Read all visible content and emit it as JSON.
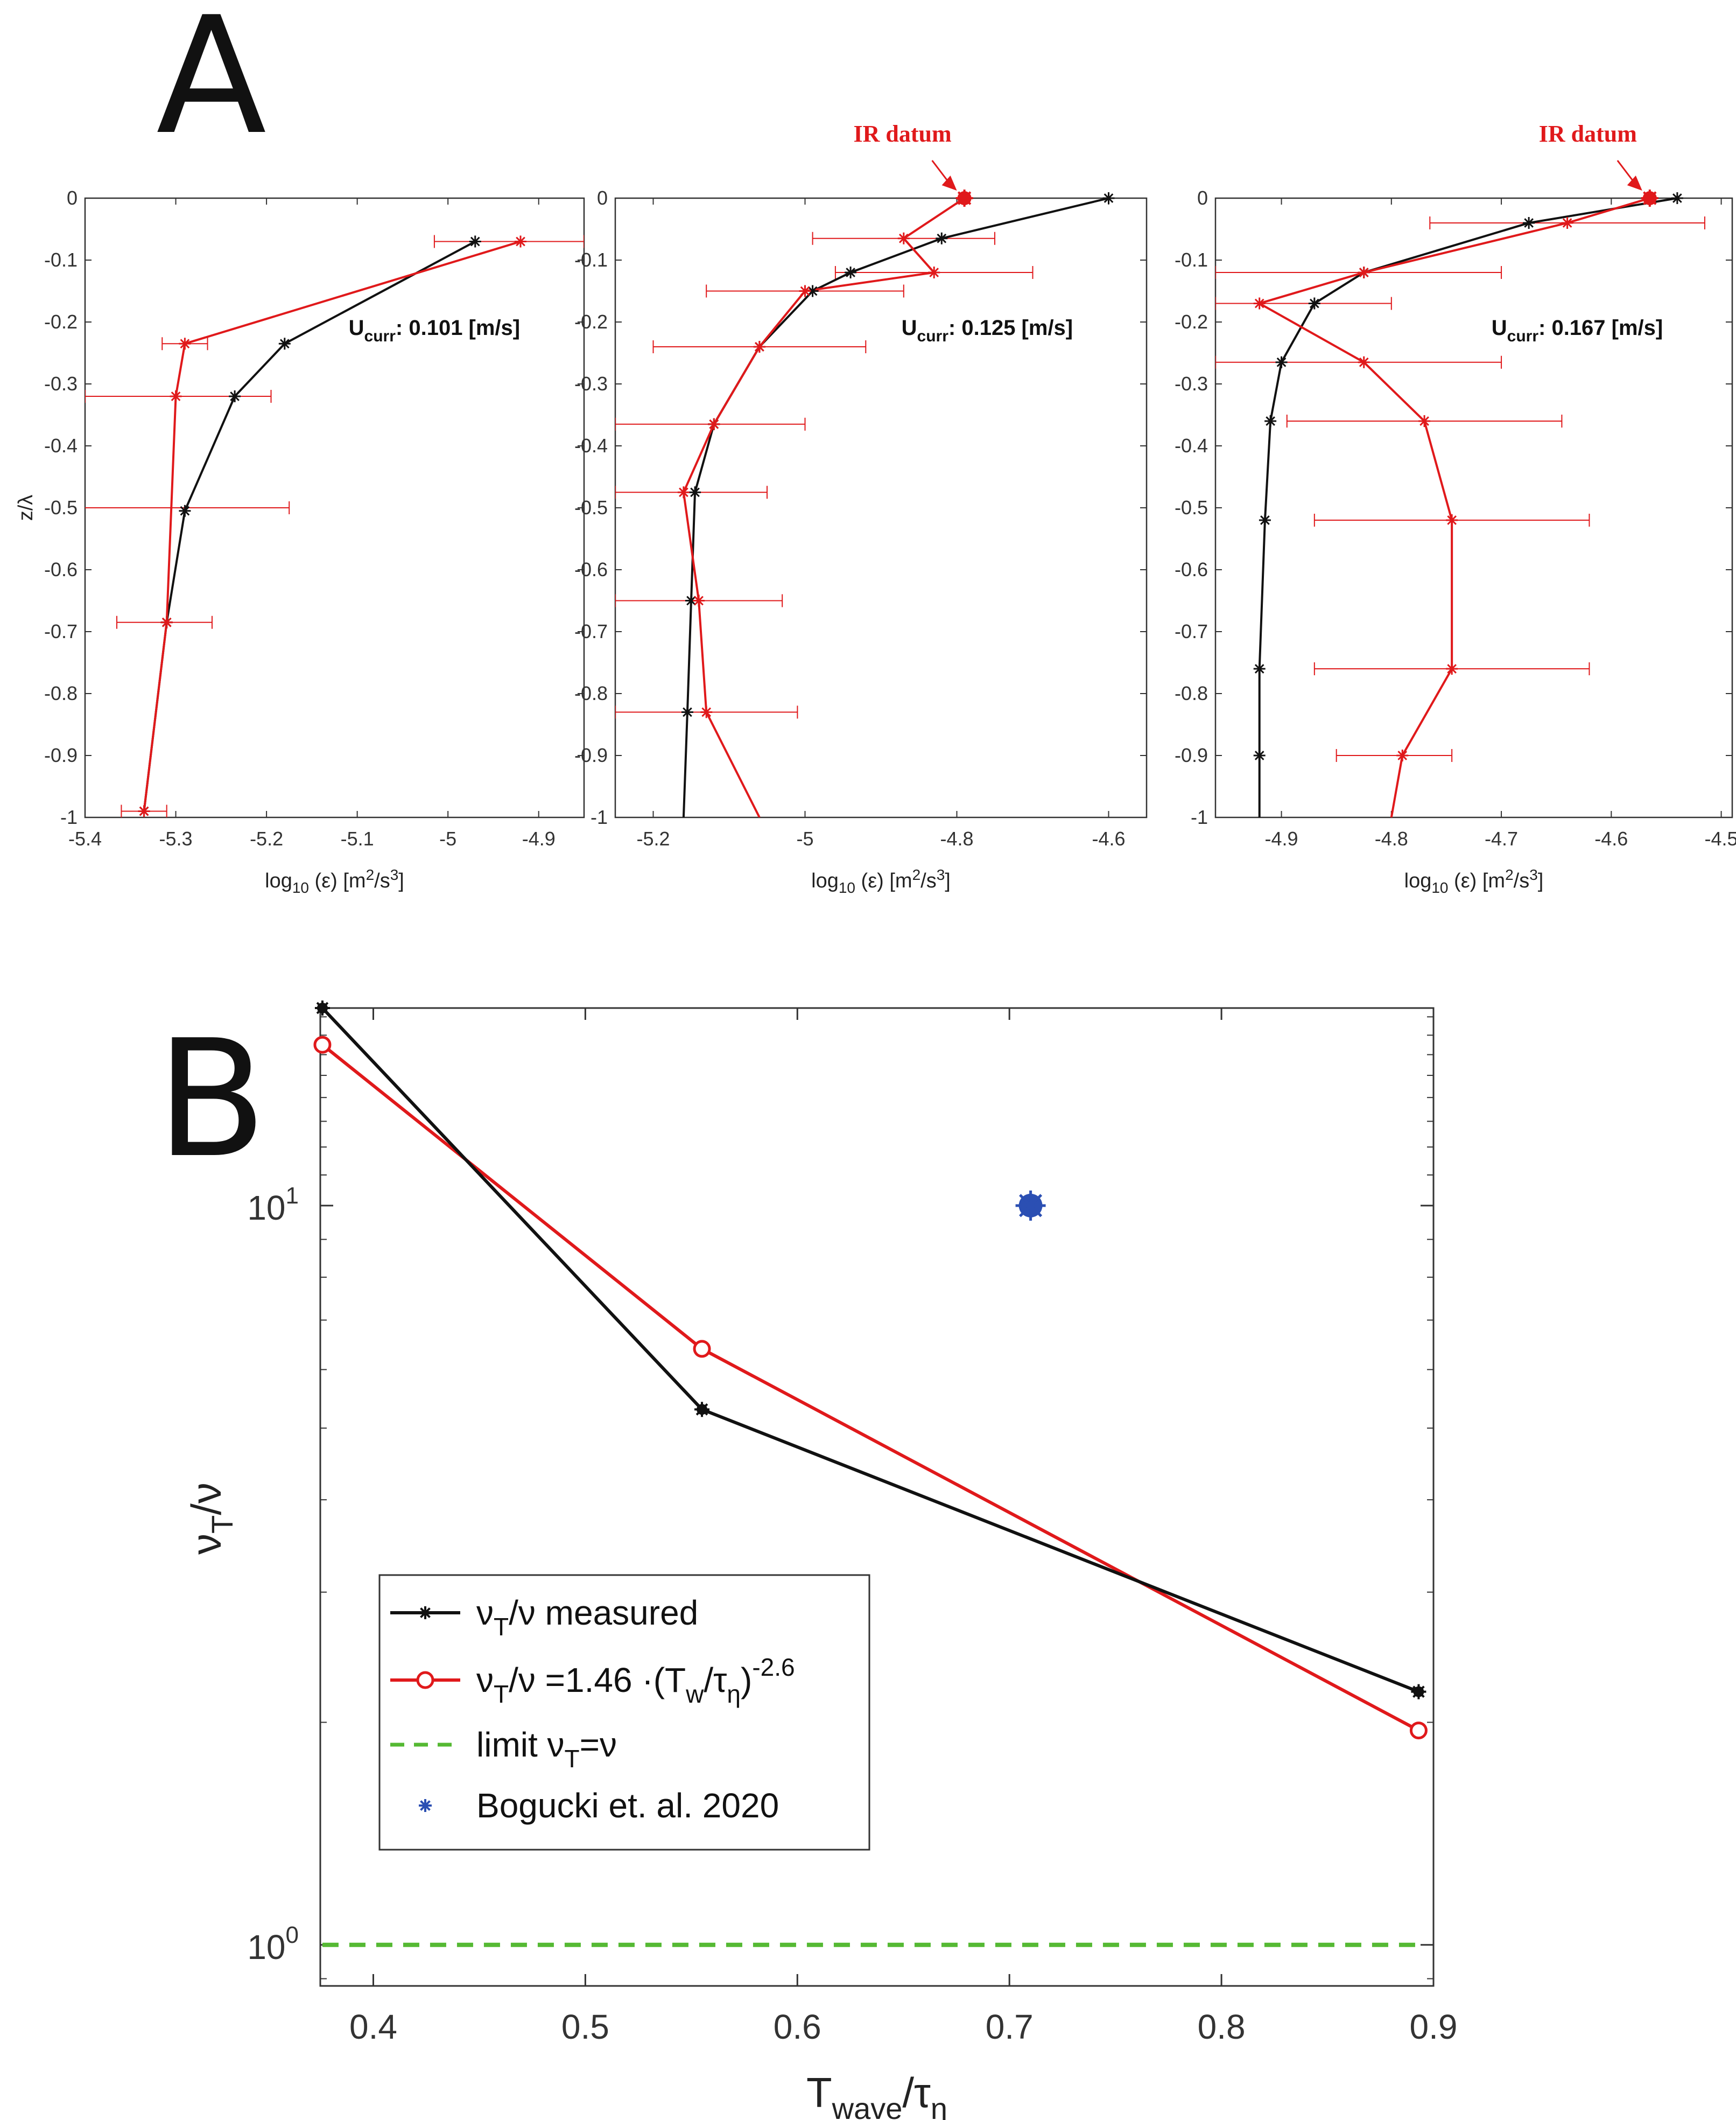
{
  "panel_labels": [
    "A",
    "B"
  ],
  "colors": {
    "model": "#111111",
    "measured": "#e0191b",
    "limit": "#55b933",
    "bogucki": "#2b4fb3",
    "axis": "#333333"
  },
  "chart_data": [
    {
      "type": "line",
      "panel": "A",
      "subplot": 1,
      "xlabel": "log",
      "xlabel_sub": "10",
      "xlabel_rest": " (ε) [m",
      "xlabel_sup": "2",
      "xlabel_tail": "/s",
      "xlabel_sup2": "3",
      "xlabel_end": "]",
      "ylabel": "z/λ",
      "xlim": [
        -5.4,
        -4.85
      ],
      "ylim": [
        -1,
        0
      ],
      "xticks": [
        -5.4,
        -5.3,
        -5.2,
        -5.1,
        -5,
        -4.9
      ],
      "xtick_labels": [
        "-5.4",
        "-5.3",
        "-5.2",
        "-5.1",
        "-5",
        "-4.9"
      ],
      "yticks": [
        0,
        -0.1,
        -0.2,
        -0.3,
        -0.4,
        -0.5,
        -0.6,
        -0.7,
        -0.8,
        -0.9,
        -1
      ],
      "ytick_labels": [
        "0",
        "-0.1",
        "-0.2",
        "-0.3",
        "-0.4",
        "-0.5",
        "-0.6",
        "-0.7",
        "-0.8",
        "-0.9",
        "-1"
      ],
      "annotation": {
        "u": "U",
        "sub": "curr",
        "rest": ": 0.101 [m/s]"
      },
      "series": [
        {
          "name": "model",
          "x": [
            -4.97,
            -5.18,
            -5.235,
            -5.29,
            -5.31,
            -5.335
          ],
          "y": [
            -0.07,
            -0.235,
            -0.32,
            -0.505,
            -0.685,
            -0.99
          ]
        },
        {
          "name": "measured",
          "x": [
            -4.92,
            -5.29,
            -5.3,
            -5.31,
            -5.335
          ],
          "y": [
            -0.07,
            -0.235,
            -0.32,
            -0.685,
            -0.99
          ],
          "xerr_low": [
            -5.015,
            -5.315,
            -5.4,
            -5.365,
            -5.36
          ],
          "xerr_high": [
            -4.85,
            -5.265,
            -5.195,
            -5.26,
            -5.31
          ],
          "extra_errorbars": [
            {
              "y": -0.5,
              "low": -5.4,
              "high": -5.175
            }
          ]
        }
      ]
    },
    {
      "type": "line",
      "panel": "A",
      "subplot": 2,
      "xlabel": "log",
      "xlabel_sub": "10",
      "xlabel_rest": " (ε) [m",
      "xlabel_sup": "2",
      "xlabel_tail": "/s",
      "xlabel_sup2": "3",
      "xlabel_end": "]",
      "xlim": [
        -5.25,
        -4.55
      ],
      "ylim": [
        -1,
        0
      ],
      "xticks": [
        -5.2,
        -5,
        -4.8,
        -4.6
      ],
      "xtick_labels": [
        "-5.2",
        "-5",
        "-4.8",
        "-4.6"
      ],
      "yticks": [
        0,
        -0.1,
        -0.2,
        -0.3,
        -0.4,
        -0.5,
        -0.6,
        -0.7,
        -0.8,
        -0.9,
        -1
      ],
      "ytick_labels": [
        "0",
        "-0.1",
        "-0.2",
        "-0.3",
        "-0.4",
        "-0.5",
        "-0.6",
        "-0.7",
        "-0.8",
        "-0.9",
        "-1"
      ],
      "annotation": {
        "u": "U",
        "sub": "curr",
        "rest": ": 0.125 [m/s]"
      },
      "ir_label": "IR datum",
      "ir_point": {
        "x": -4.79,
        "y": 0
      },
      "series": [
        {
          "name": "model",
          "x": [
            -4.6,
            -4.82,
            -4.94,
            -4.99,
            -5.06,
            -5.12,
            -5.145,
            -5.15,
            -5.155,
            -5.16
          ],
          "y": [
            0,
            -0.065,
            -0.12,
            -0.15,
            -0.24,
            -0.365,
            -0.475,
            -0.65,
            -0.83,
            -1
          ]
        },
        {
          "name": "measured",
          "x": [
            -4.79,
            -4.87,
            -4.83,
            -5.0,
            -5.06,
            -5.12,
            -5.16,
            -5.14,
            -5.13,
            -5.06
          ],
          "y": [
            0,
            -0.065,
            -0.12,
            -0.15,
            -0.24,
            -0.365,
            -0.475,
            -0.65,
            -0.83,
            -1
          ],
          "xerr_low": [
            null,
            -4.99,
            -4.96,
            -5.13,
            -5.2,
            -5.25,
            -5.25,
            -5.25,
            -5.25,
            null
          ],
          "xerr_high": [
            null,
            -4.75,
            -4.7,
            -4.87,
            -4.92,
            -5.0,
            -5.05,
            -5.03,
            -5.01,
            null
          ]
        }
      ]
    },
    {
      "type": "line",
      "panel": "A",
      "subplot": 3,
      "xlabel": "log",
      "xlabel_sub": "10",
      "xlabel_rest": " (ε) [m",
      "xlabel_sup": "2",
      "xlabel_tail": "/s",
      "xlabel_sup2": "3",
      "xlabel_end": "]",
      "xlim": [
        -4.96,
        -4.49
      ],
      "ylim": [
        -1,
        0
      ],
      "xticks": [
        -4.9,
        -4.8,
        -4.7,
        -4.6,
        -4.5
      ],
      "xtick_labels": [
        "-4.9",
        "-4.8",
        "-4.7",
        "-4.6",
        "-4.5"
      ],
      "yticks": [
        0,
        -0.1,
        -0.2,
        -0.3,
        -0.4,
        -0.5,
        -0.6,
        -0.7,
        -0.8,
        -0.9,
        -1
      ],
      "ytick_labels": [
        "0",
        "-0.1",
        "-0.2",
        "-0.3",
        "-0.4",
        "-0.5",
        "-0.6",
        "-0.7",
        "-0.8",
        "-0.9",
        "-1"
      ],
      "annotation": {
        "u": "U",
        "sub": "curr",
        "rest": ": 0.167 [m/s]"
      },
      "ir_label": "IR datum",
      "ir_point": {
        "x": -4.565,
        "y": 0
      },
      "series": [
        {
          "name": "model",
          "x": [
            -4.54,
            -4.675,
            -4.825,
            -4.87,
            -4.9,
            -4.91,
            -4.915,
            -4.92,
            -4.92,
            -4.92
          ],
          "y": [
            0,
            -0.04,
            -0.12,
            -0.17,
            -0.265,
            -0.36,
            -0.52,
            -0.76,
            -0.9,
            -1
          ]
        },
        {
          "name": "measured",
          "x": [
            -4.565,
            -4.64,
            -4.825,
            -4.92,
            -4.825,
            -4.77,
            -4.745,
            -4.745,
            -4.79,
            -4.8
          ],
          "y": [
            0,
            -0.04,
            -0.12,
            -0.17,
            -0.265,
            -0.36,
            -0.52,
            -0.76,
            -0.9,
            -1
          ],
          "xerr_low": [
            null,
            -4.765,
            -4.96,
            -4.96,
            -4.96,
            -4.895,
            -4.87,
            -4.87,
            -4.85,
            null
          ],
          "xerr_high": [
            null,
            -4.515,
            -4.7,
            -4.8,
            -4.7,
            -4.645,
            -4.62,
            -4.62,
            -4.745,
            null
          ]
        }
      ]
    },
    {
      "type": "line",
      "panel": "B",
      "yscale": "log",
      "xlim": [
        0.375,
        0.9
      ],
      "ylim": [
        0.88,
        18.5
      ],
      "xticks": [
        0.4,
        0.5,
        0.6,
        0.7,
        0.8,
        0.9
      ],
      "xtick_labels": [
        "0.4",
        "0.5",
        "0.6",
        "0.7",
        "0.8",
        "0.9"
      ],
      "xlabel": {
        "base": "T",
        "sub": "wave",
        "rest": "/τ",
        "sub2": "η"
      },
      "ylabel": {
        "base": "ν",
        "sub": "T",
        "rest": "/ν"
      },
      "yticks": [
        1,
        10
      ],
      "ytick_labels": [
        {
          "base": "10",
          "exp": "0"
        },
        {
          "base": "10",
          "exp": "1"
        }
      ],
      "series": [
        {
          "name": "ν_T/ν measured",
          "x": [
            0.376,
            0.555,
            0.893
          ],
          "y": [
            18.5,
            5.3,
            2.2
          ]
        },
        {
          "name": "ν_T/ν = 1.46·(T_w/τ_η)^-2.6",
          "x": [
            0.376,
            0.555,
            0.893
          ],
          "y": [
            16.5,
            6.4,
            1.95
          ]
        },
        {
          "name": "limit ν_T=ν",
          "x": [
            0.376,
            0.893
          ],
          "y": [
            1,
            1
          ]
        },
        {
          "name": "Bogucki et. al. 2020",
          "x": [
            0.71
          ],
          "y": [
            10
          ]
        }
      ],
      "legend": {
        "position": "lower-left",
        "entries": [
          {
            "nu": "ν",
            "sub": "T",
            "mid": "/ν",
            "rest": " measured"
          },
          {
            "nu": "ν",
            "sub": "T",
            "mid": "/ν =1.46 ·(T",
            "sub2": "w",
            "mid2": "/τ",
            "sub3": "η",
            "mid3": ")",
            "sup": "-2.6"
          },
          {
            "pre": "limit ν",
            "sub": "T",
            "rest": "=ν"
          },
          {
            "text": "Bogucki et. al. 2020"
          }
        ]
      }
    }
  ]
}
